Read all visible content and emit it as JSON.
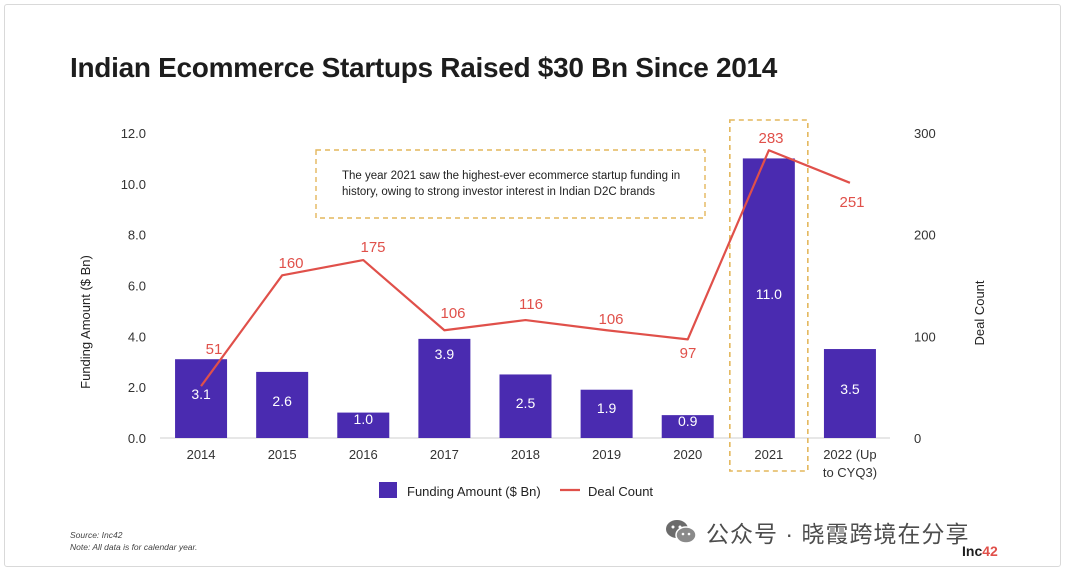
{
  "title": "Indian Ecommerce Startups Raised $30 Bn Since 2014",
  "annotation": [
    "The year 2021 saw the highest-ever ecommerce startup funding in",
    "history, owing to strong investor interest in Indian D2C brands"
  ],
  "footer": {
    "source": "Source: Inc42",
    "note": "Note: All data is for calendar year."
  },
  "watermark": {
    "text": "公众号 · 晓霞跨境在分享",
    "icon": "wechat-icon"
  },
  "brand": {
    "prefix": "Inc",
    "suffix": "42"
  },
  "colors": {
    "bar": "#4a2bb0",
    "line": "#e0504a",
    "highlight_border": "#e3b75c"
  },
  "chart_data": {
    "type": "bar+line",
    "categories": [
      "2014",
      "2015",
      "2016",
      "2017",
      "2018",
      "2019",
      "2020",
      "2021",
      [
        "2022 (Up",
        "to CYQ3)"
      ]
    ],
    "series": [
      {
        "name": "Funding Amount ($ Bn)",
        "type": "bar",
        "axis": "left",
        "values": [
          3.1,
          2.6,
          1.0,
          3.9,
          2.5,
          1.9,
          0.9,
          11.0,
          3.5
        ],
        "labels": [
          "3.1",
          "2.6",
          "1.0",
          "3.9",
          "2.5",
          "1.9",
          "0.9",
          "11.0",
          "3.5"
        ]
      },
      {
        "name": "Deal Count",
        "type": "line",
        "axis": "right",
        "values": [
          51,
          160,
          175,
          106,
          116,
          106,
          97,
          283,
          251
        ],
        "labels": [
          "51",
          "160",
          "175",
          "106",
          "116",
          "106",
          "97",
          "283",
          "251"
        ]
      }
    ],
    "ylabel": "Funding Amount ($ Bn)",
    "ylabel_right": "Deal Count",
    "ylim": [
      0,
      12
    ],
    "ylim_right": [
      0,
      300
    ],
    "yticks": [
      "0.0",
      "2.0",
      "4.0",
      "6.0",
      "8.0",
      "10.0",
      "12.0"
    ],
    "yticks_right": [
      "0",
      "100",
      "200",
      "300"
    ],
    "highlight_category": "2021",
    "legend": [
      "Funding Amount ($ Bn)",
      "Deal Count"
    ],
    "legend_position": "bottom-center",
    "grid": false
  }
}
